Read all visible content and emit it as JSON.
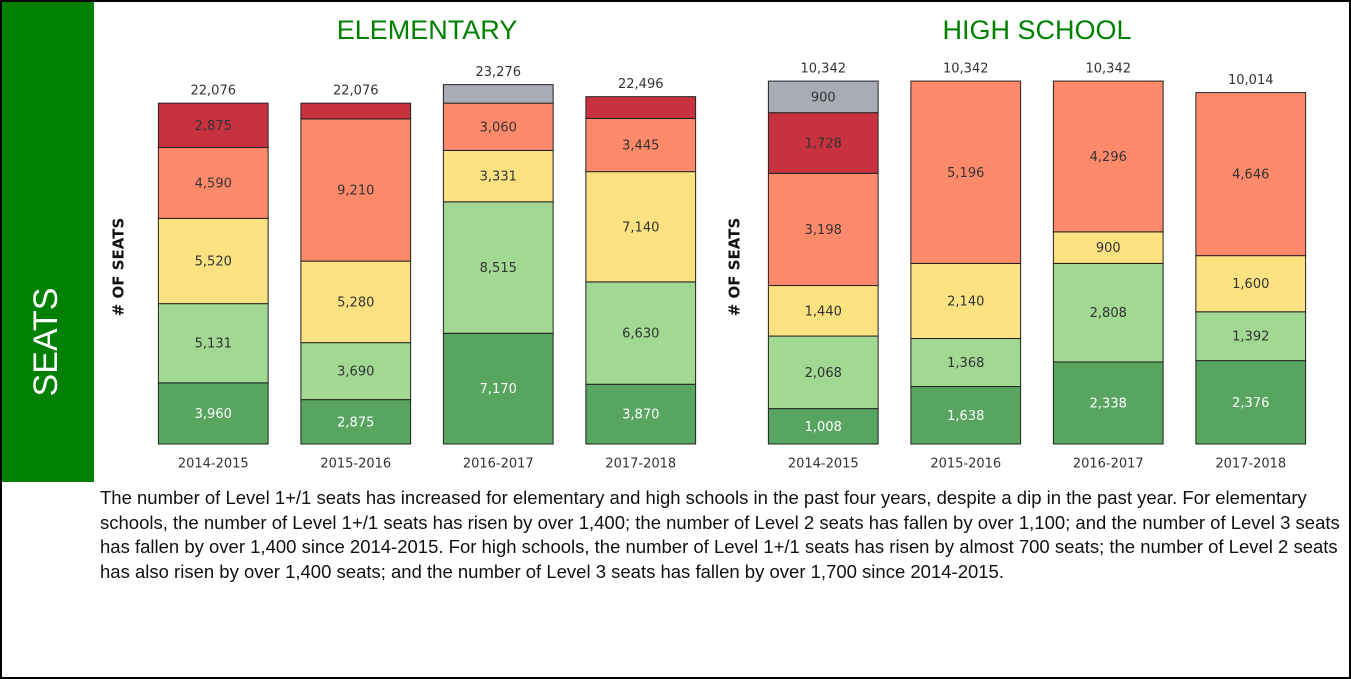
{
  "sidebar": "SEATS",
  "chart_data": [
    {
      "type": "stacked-bar",
      "title": "ELEMENTARY",
      "y_label": "# OF SEATS",
      "categories": [
        "2014-2015",
        "2015-2016",
        "2016-2017",
        "2017-2018"
      ],
      "ylim": [
        0,
        25000
      ],
      "grid": false,
      "series": [
        {
          "color": "#57a55f",
          "values": [
            3960,
            2875,
            7170,
            3870
          ],
          "value_labels": [
            "3,960",
            "2,875",
            "7,170",
            "3,870"
          ]
        },
        {
          "color": "#a1d993",
          "values": [
            5131,
            3690,
            8515,
            6630
          ],
          "value_labels": [
            "5,131",
            "3,690",
            "8,515",
            "6,630"
          ]
        },
        {
          "color": "#fde281",
          "values": [
            5520,
            5280,
            3331,
            7140
          ],
          "value_labels": [
            "5,520",
            "5,280",
            "3,331",
            "7,140"
          ]
        },
        {
          "color": "#ff8a6b",
          "values": [
            4590,
            9210,
            3060,
            3445
          ],
          "value_labels": [
            "4,590",
            "9,210",
            "3,060",
            "3,445"
          ]
        },
        {
          "color": "#c8323f",
          "values": [
            2875,
            1021,
            null,
            1411
          ],
          "value_labels": [
            "2,875",
            null,
            null,
            null
          ]
        },
        {
          "color": "#a9acb4",
          "values": [
            null,
            null,
            1200,
            null
          ],
          "value_labels": [
            null,
            null,
            null,
            null
          ]
        }
      ],
      "totals": [
        22076,
        22076,
        23276,
        22496
      ],
      "total_labels": [
        "22,076",
        "22,076",
        "23,276",
        "22,496"
      ]
    },
    {
      "type": "stacked-bar",
      "title": "HIGH SCHOOL",
      "y_label": "# OF SEATS",
      "categories": [
        "2014-2015",
        "2015-2016",
        "2016-2017",
        "2017-2018"
      ],
      "ylim": [
        0,
        11000
      ],
      "grid": false,
      "series": [
        {
          "color": "#57a55f",
          "values": [
            1008,
            1638,
            2338,
            2376
          ],
          "value_labels": [
            "1,008",
            "1,638",
            "2,338",
            "2,376"
          ]
        },
        {
          "color": "#a1d993",
          "values": [
            2068,
            1368,
            2808,
            1392
          ],
          "value_labels": [
            "2,068",
            "1,368",
            "2,808",
            "1,392"
          ]
        },
        {
          "color": "#fde281",
          "values": [
            1440,
            2140,
            900,
            1600
          ],
          "value_labels": [
            "1,440",
            "2,140",
            "900",
            "1,600"
          ]
        },
        {
          "color": "#ff8a6b",
          "values": [
            3198,
            5196,
            4296,
            4646
          ],
          "value_labels": [
            "3,198",
            "5,196",
            "4,296",
            "4,646"
          ]
        },
        {
          "color": "#c8323f",
          "values": [
            1728,
            null,
            null,
            null
          ],
          "value_labels": [
            "1,728",
            null,
            null,
            null
          ]
        },
        {
          "color": "#a9acb4",
          "values": [
            900,
            null,
            null,
            null
          ],
          "value_labels": [
            "900",
            null,
            null,
            null
          ]
        }
      ],
      "totals": [
        10342,
        10342,
        10342,
        10014
      ],
      "total_labels": [
        "10,342",
        "10,342",
        "10,342",
        "10,014"
      ]
    }
  ],
  "description": "The number of Level 1+/1 seats has increased for elementary and high schools in the past four years, despite a dip in the past year. For elementary schools, the number of Level 1+/1 seats has risen by over 1,400; the number of Level 2 seats has fallen by over 1,100; and the number of Level 3 seats has fallen by over 1,400 since 2014-2015. For high schools, the number of Level 1+/1 seats has risen by almost 700 seats; the number of Level 2 seats has also risen by over 1,400 seats; and the number of Level 3 seats has fallen by over 1,700 since 2014-2015."
}
